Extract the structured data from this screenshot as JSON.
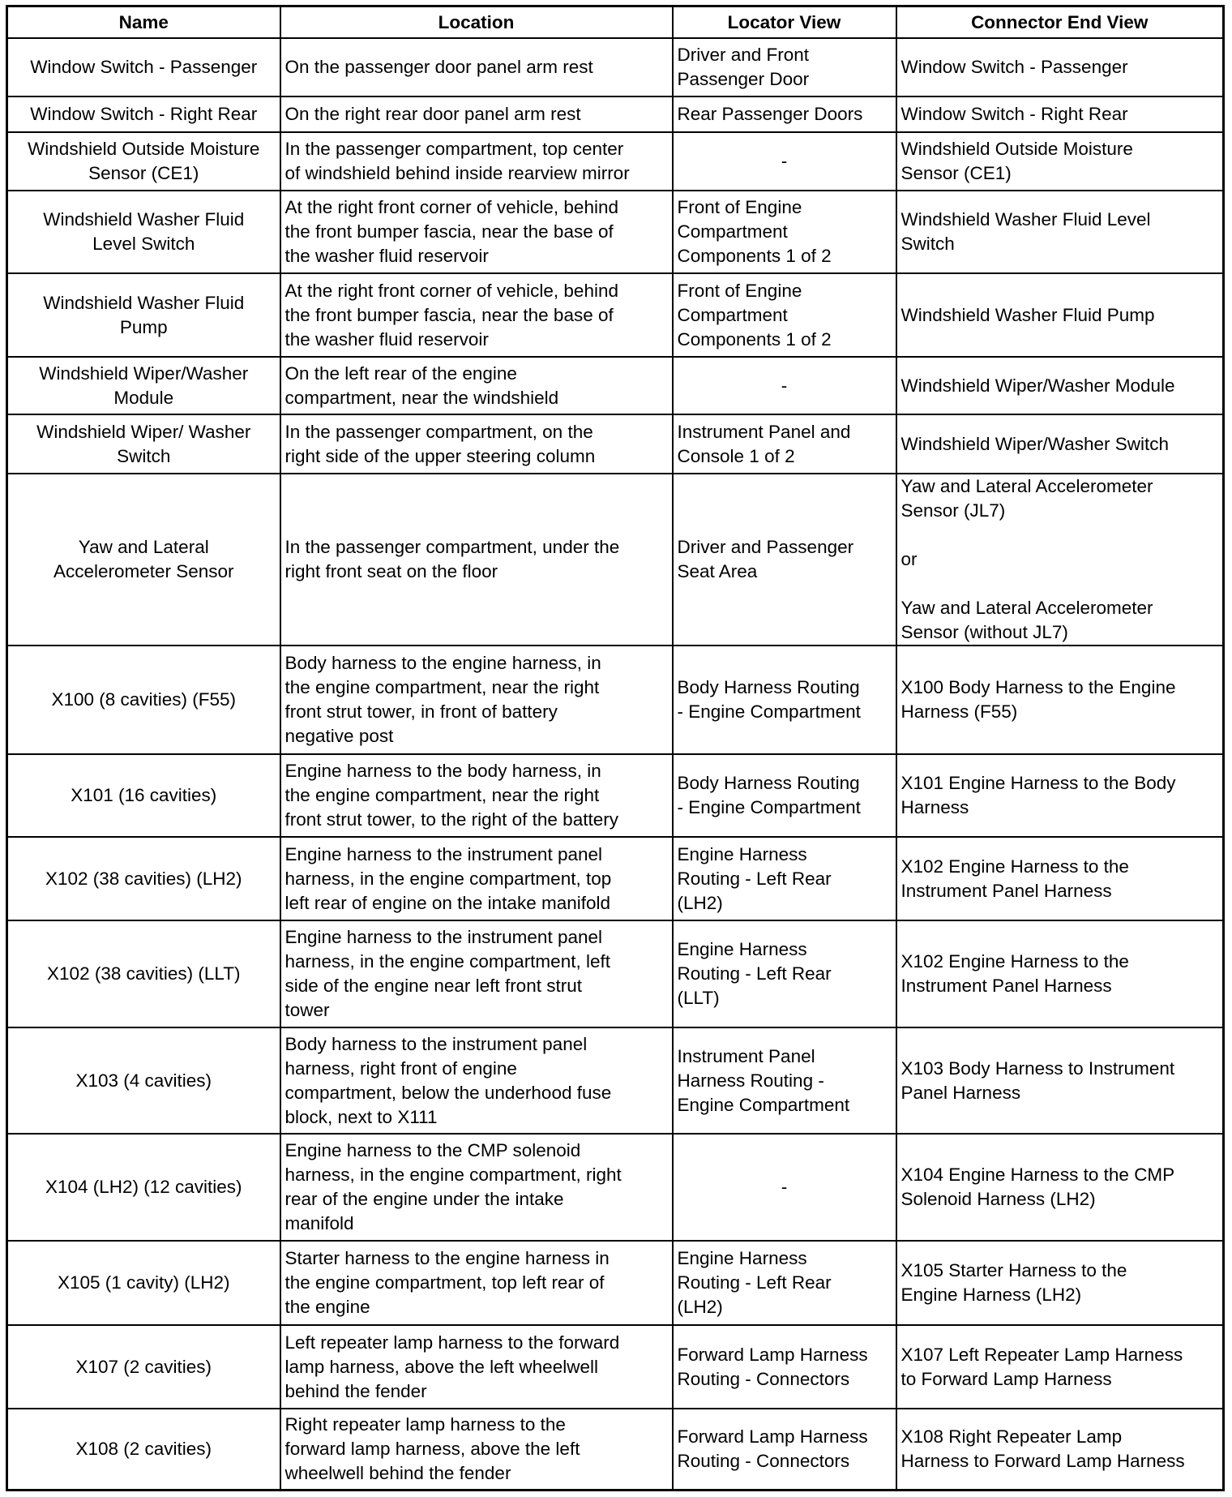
{
  "headers": [
    "Name",
    "Location",
    "Locator View",
    "Connector End View"
  ],
  "rows": [
    {
      "name": "Window Switch - Passenger",
      "location": "On the passenger door panel arm rest",
      "locator": "Driver and Front\nPassenger Door",
      "connector": "Window Switch - Passenger"
    },
    {
      "name": "Window Switch - Right Rear",
      "location": "On the right rear door panel arm rest",
      "locator": "Rear Passenger Doors",
      "connector": "Window Switch - Right Rear"
    },
    {
      "name": "Windshield Outside Moisture\nSensor (CE1)",
      "location": "In the passenger compartment, top center\nof windshield behind inside rearview mirror",
      "locator": "-",
      "connector": "Windshield Outside Moisture\nSensor (CE1)"
    },
    {
      "name": "Windshield Washer Fluid\nLevel Switch",
      "location": "At the right front corner of vehicle, behind\nthe front bumper fascia, near the base of\nthe washer fluid reservoir",
      "locator": "Front of Engine\nCompartment\nComponents 1 of 2",
      "connector": "Windshield Washer Fluid Level\nSwitch"
    },
    {
      "name": "Windshield Washer Fluid\nPump",
      "location": "At the right front corner of vehicle, behind\nthe front bumper fascia, near the base of\nthe washer fluid reservoir",
      "locator": "Front of Engine\nCompartment\nComponents 1 of 2",
      "connector": "Windshield Washer Fluid Pump"
    },
    {
      "name": "Windshield Wiper/Washer\nModule",
      "location": "On the left rear of the engine\ncompartment, near the windshield",
      "locator": "-",
      "connector": "Windshield Wiper/Washer Module"
    },
    {
      "name": "Windshield Wiper/ Washer\nSwitch",
      "location": "In the passenger compartment, on the\nright side of the upper steering column",
      "locator": "Instrument Panel and\nConsole 1 of 2",
      "connector": "Windshield Wiper/Washer Switch"
    },
    {
      "name": "Yaw and Lateral\nAccelerometer Sensor",
      "location": "In the passenger compartment, under the\nright front seat on the floor",
      "locator": "Driver and Passenger\nSeat Area",
      "connector": "Yaw and Lateral Accelerometer\nSensor (JL7)\n\nor\n\nYaw and Lateral Accelerometer\nSensor (without JL7)"
    },
    {
      "name": "X100 (8 cavities) (F55)",
      "location": "Body harness to the engine harness, in\nthe engine compartment, near the right\nfront strut tower, in front of battery\nnegative post",
      "locator": "Body Harness Routing\n- Engine Compartment",
      "connector": "X100 Body Harness to the Engine\nHarness (F55)"
    },
    {
      "name": "X101 (16 cavities)",
      "location": "Engine harness to the body harness, in\nthe engine compartment, near the right\nfront strut tower, to the right of the battery",
      "locator": "Body Harness Routing\n- Engine Compartment",
      "connector": "X101 Engine Harness to the Body\nHarness"
    },
    {
      "name": "X102 (38 cavities) (LH2)",
      "location": "Engine harness to the instrument panel\nharness, in the engine compartment, top\nleft rear of engine on the intake manifold",
      "locator": "Engine Harness\nRouting - Left Rear\n(LH2)",
      "connector": "X102 Engine Harness to the\nInstrument Panel Harness"
    },
    {
      "name": "X102 (38 cavities) (LLT)",
      "location": "Engine harness to the instrument panel\nharness, in the engine compartment, left\nside of the engine near left front strut\ntower",
      "locator": "Engine Harness\nRouting - Left Rear\n(LLT)",
      "connector": "X102 Engine Harness to the\nInstrument Panel Harness"
    },
    {
      "name": "X103 (4 cavities)",
      "location": "Body harness to the instrument panel\nharness, right front of engine\ncompartment, below the underhood fuse\nblock, next to X111",
      "locator": "Instrument Panel\nHarness Routing -\nEngine Compartment",
      "connector": "X103 Body Harness to Instrument\nPanel Harness"
    },
    {
      "name": "X104 (LH2) (12 cavities)",
      "location": "Engine harness to the CMP solenoid\nharness, in the engine compartment, right\nrear of the engine under the intake\nmanifold",
      "locator": "-",
      "connector": "X104 Engine Harness to the CMP\nSolenoid Harness (LH2)"
    },
    {
      "name": "X105 (1 cavity) (LH2)",
      "location": "Starter harness to the engine harness in\nthe engine compartment, top left rear of\nthe engine",
      "locator": "Engine Harness\nRouting - Left Rear\n(LH2)",
      "connector": "X105 Starter Harness to the\nEngine Harness (LH2)"
    },
    {
      "name": "X107 (2 cavities)",
      "location": "Left repeater lamp harness to the forward\nlamp harness, above the left wheelwell\nbehind the fender",
      "locator": "Forward Lamp Harness\nRouting - Connectors",
      "connector": "X107 Left Repeater Lamp Harness\nto Forward Lamp Harness"
    },
    {
      "name": "X108 (2 cavities)",
      "location": "Right repeater lamp harness to the\nforward lamp harness, above the left\nwheelwell behind the fender",
      "locator": "Forward Lamp Harness\nRouting - Connectors",
      "connector": "X108 Right Repeater Lamp\nHarness to Forward Lamp Harness"
    }
  ]
}
